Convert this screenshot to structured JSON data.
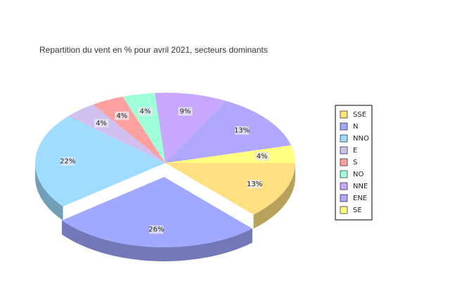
{
  "chart_data": {
    "type": "pie",
    "title": "Repartition du vent en % pour avril 2021, secteurs dominants",
    "categories": [
      "SSE",
      "N",
      "NNO",
      "E",
      "S",
      "NO",
      "NNE",
      "ENE",
      "SE"
    ],
    "values": [
      13,
      26,
      22,
      4,
      4,
      4,
      9,
      13,
      4
    ],
    "value_labels": [
      "13%",
      "26%",
      "22%",
      "4%",
      "4%",
      "4%",
      "9%",
      "13%",
      "4%"
    ],
    "colors": [
      "#ffe080",
      "#a0a8ff",
      "#a0dcff",
      "#d0c0f0",
      "#ffa0a0",
      "#a0ffd8",
      "#c8a8ff",
      "#b0a8ff",
      "#ffff80"
    ],
    "exploded": "N",
    "legend": "right"
  }
}
